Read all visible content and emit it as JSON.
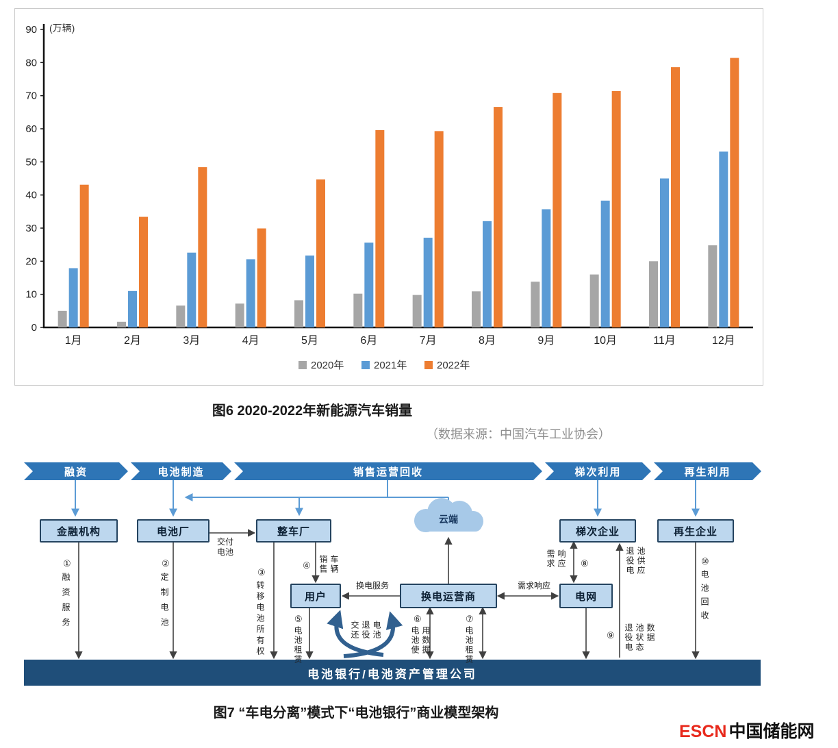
{
  "chart_data": {
    "type": "bar",
    "title": "",
    "unit_label": "(万辆)",
    "categories": [
      "1月",
      "2月",
      "3月",
      "4月",
      "5月",
      "6月",
      "7月",
      "8月",
      "9月",
      "10月",
      "11月",
      "12月"
    ],
    "series": [
      {
        "name": "2020年",
        "color": "#a6a6a6",
        "values": [
          5.0,
          1.7,
          6.6,
          7.2,
          8.2,
          10.2,
          9.8,
          10.9,
          13.8,
          16.0,
          20.0,
          24.8
        ]
      },
      {
        "name": "2021年",
        "color": "#5b9bd5",
        "values": [
          17.9,
          11.0,
          22.6,
          20.6,
          21.7,
          25.6,
          27.1,
          32.1,
          35.7,
          38.3,
          45.0,
          53.1
        ]
      },
      {
        "name": "2022年",
        "color": "#ed7d31",
        "values": [
          43.1,
          33.4,
          48.4,
          29.9,
          44.7,
          59.6,
          59.3,
          66.6,
          70.8,
          71.4,
          78.6,
          81.4
        ]
      }
    ],
    "ylim": [
      0,
      90
    ],
    "yticks": [
      0,
      10,
      20,
      30,
      40,
      50,
      60,
      70,
      80,
      90
    ],
    "grid": false,
    "legend_position": "bottom"
  },
  "captions": {
    "fig6": "图6 2020-2022年新能源汽车销量",
    "source": "（数据来源：中国汽车工业协会）",
    "fig7": "图7 “车电分离”模式下“电池银行”商业模型架构"
  },
  "logo": {
    "escn": "ESCN",
    "cn": "中国储能网"
  },
  "colors": {
    "banner_blue": "#2e75b6",
    "box_fill": "#bdd7ee",
    "bank_bar": "#1f4e79",
    "blue_arrow": "#5b9bd5",
    "black_arrow": "#404040",
    "cycle_arrow": "#31608f"
  },
  "diagram": {
    "banner": [
      {
        "label": "融资"
      },
      {
        "label": "电池制造"
      },
      {
        "label": "销售运营回收"
      },
      {
        "label": "梯次利用"
      },
      {
        "label": "再生利用"
      }
    ],
    "boxes": {
      "finance": "金融机构",
      "battery_factory": "电池厂",
      "oem": "整车厂",
      "cloud": "云端",
      "tier2": "梯次企业",
      "recycle": "再生企业",
      "user": "用户",
      "swap_operator": "换电运营商",
      "grid": "电网",
      "bank": "电池银行/电池资产管理公司"
    },
    "edges": {
      "n1": "①",
      "t1": "融资服务",
      "n2": "②",
      "t2": "定制电池",
      "deliver": "交付电池",
      "n3": "③",
      "t3": "转移电池所有权",
      "n4": "④",
      "t4": "销售车辆",
      "swap_service": "换电服务",
      "n5": "⑤",
      "t5": "电池租赁",
      "return_label": "交还退役电池",
      "n6": "⑥",
      "t6": "电池使用数据",
      "n7": "⑦",
      "t7": "电池租赁",
      "demand_h": "需求响应",
      "demand_v": "需求响应",
      "n8": "⑧",
      "t8": "退役电池供应",
      "n9": "⑨",
      "t9": "退役电池状态数据",
      "n10": "⑩",
      "t10": "电池回收"
    }
  }
}
